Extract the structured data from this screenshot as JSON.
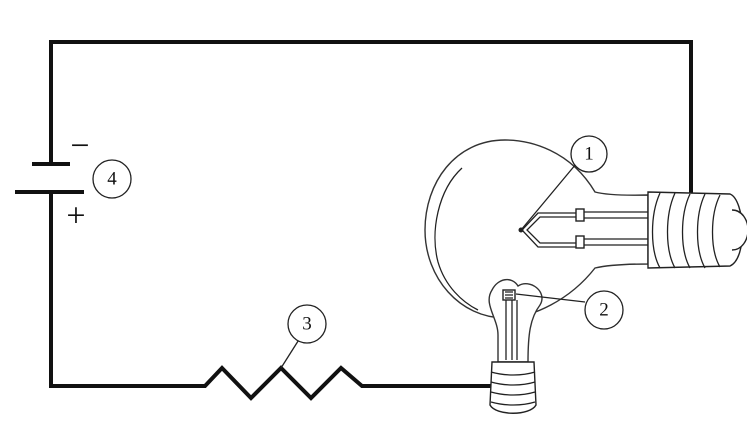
{
  "diagram": {
    "battery": {
      "negative_sign": "−",
      "positive_sign": "+"
    },
    "markers": [
      {
        "label": "1",
        "refers_to": "filament"
      },
      {
        "label": "2",
        "refers_to": "filament"
      },
      {
        "label": "3",
        "refers_to": "resistor"
      },
      {
        "label": "4",
        "refers_to": "battery"
      }
    ],
    "colors": {
      "line": "#111111",
      "background": "#ffffff"
    }
  }
}
